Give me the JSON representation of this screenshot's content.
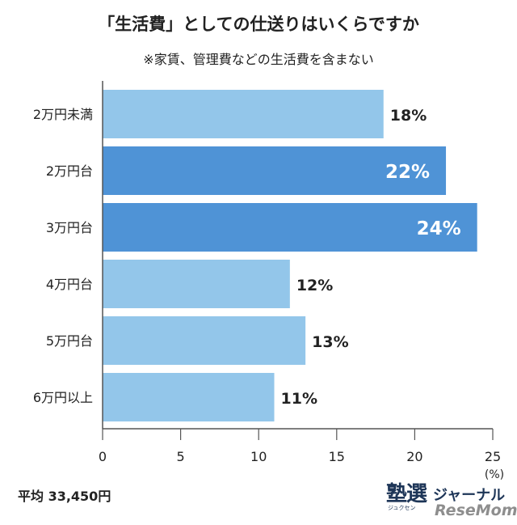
{
  "header": {
    "title": "「生活費」としての仕送りはいくらですか",
    "subtitle": "※家賃、管理費などの生活費を含まない"
  },
  "footer": {
    "average": "平均 33,450円"
  },
  "logo": {
    "kanji": "塾選",
    "kana": "ジャーナル",
    "ruby": "ジュクセン",
    "resemom": "ReseMom"
  },
  "colors": {
    "light_bar": "#93c6ea",
    "highlight_bar": "#4f93d6",
    "highlight_label": "#ffffff",
    "default_label": "#222222"
  },
  "chart_data": {
    "type": "bar",
    "orientation": "horizontal",
    "categories": [
      "2万円未満",
      "2万円台",
      "3万円台",
      "4万円台",
      "5万円台",
      "6万円以上"
    ],
    "values": [
      18,
      22,
      24,
      12,
      13,
      11
    ],
    "data_labels": [
      "18%",
      "22%",
      "24%",
      "12%",
      "13%",
      "11%"
    ],
    "highlighted": [
      false,
      true,
      true,
      false,
      false,
      false
    ],
    "title": "「生活費」としての仕送りはいくらですか",
    "subtitle": "※家賃、管理費などの生活費を含まない",
    "xlabel": "(%)",
    "ylabel": "",
    "xlim": [
      0,
      25
    ],
    "xticks": [
      "0",
      "5",
      "10",
      "15",
      "20",
      "25"
    ],
    "grid": false
  }
}
